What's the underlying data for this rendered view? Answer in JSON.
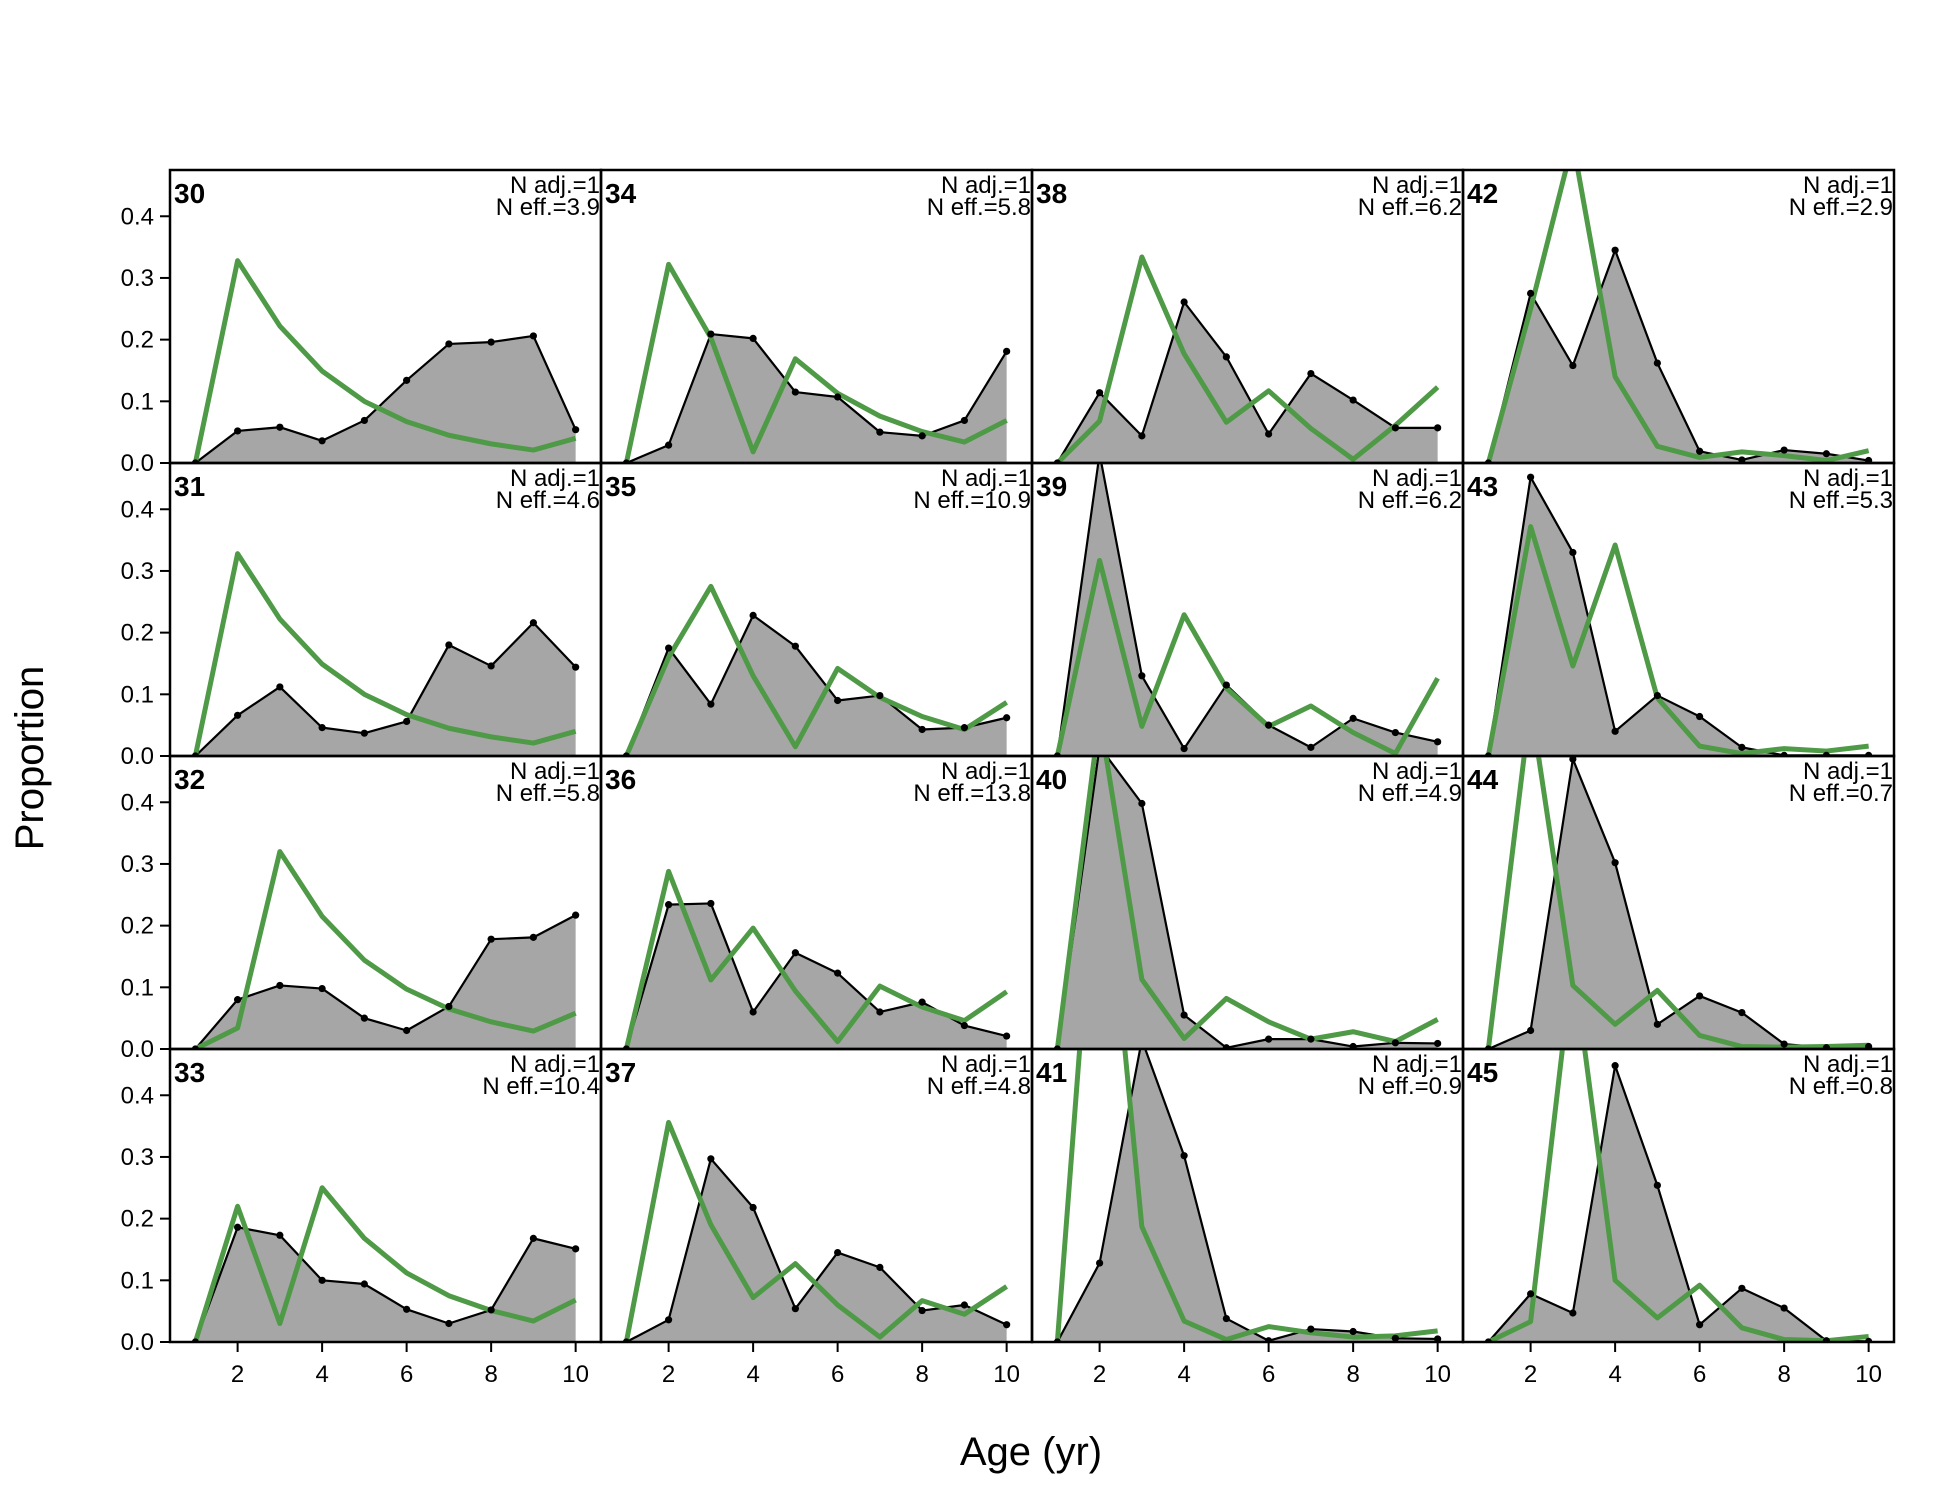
{
  "chart_data": {
    "type": "area",
    "xlabel": "Age (yr)",
    "ylabel": "Proportion",
    "xlim": [
      0.4,
      10.6
    ],
    "ylim": [
      0,
      0.475
    ],
    "x_ticks": [
      2,
      4,
      6,
      8,
      10
    ],
    "y_ticks": [
      "0.0",
      "0.1",
      "0.2",
      "0.3",
      "0.4"
    ],
    "y_tick_values": [
      0,
      0.1,
      0.2,
      0.3,
      0.4
    ],
    "ages": [
      1,
      2,
      3,
      4,
      5,
      6,
      7,
      8,
      9,
      10
    ],
    "colors": {
      "observed_fill": "#a6a6a6",
      "observed_line": "#000000",
      "expected_line": "#4f9a46",
      "zero_line": "#bdbdbd"
    },
    "panels": [
      {
        "label": "30",
        "n_adj": "N adj.=1",
        "n_eff": "N eff.=3.9",
        "observed": [
          0,
          0.052,
          0.058,
          0.036,
          0.069,
          0.134,
          0.193,
          0.196,
          0.206,
          0.054
        ],
        "expected": [
          0,
          0.328,
          0.222,
          0.149,
          0.1,
          0.067,
          0.045,
          0.031,
          0.021,
          0.04
        ]
      },
      {
        "label": "31",
        "n_adj": "N adj.=1",
        "n_eff": "N eff.=4.6",
        "observed": [
          0,
          0.066,
          0.112,
          0.046,
          0.037,
          0.056,
          0.18,
          0.146,
          0.216,
          0.144
        ],
        "expected": [
          0,
          0.328,
          0.222,
          0.149,
          0.1,
          0.067,
          0.045,
          0.031,
          0.021,
          0.04
        ]
      },
      {
        "label": "32",
        "n_adj": "N adj.=1",
        "n_eff": "N eff.=5.8",
        "observed": [
          0,
          0.08,
          0.103,
          0.098,
          0.05,
          0.03,
          0.069,
          0.178,
          0.181,
          0.217
        ],
        "expected": [
          0,
          0.034,
          0.32,
          0.215,
          0.144,
          0.097,
          0.065,
          0.044,
          0.029,
          0.058
        ]
      },
      {
        "label": "33",
        "n_adj": "N adj.=1",
        "n_eff": "N eff.=10.4",
        "observed": [
          0,
          0.186,
          0.173,
          0.1,
          0.094,
          0.053,
          0.03,
          0.052,
          0.168,
          0.151
        ],
        "expected": [
          0,
          0.22,
          0.03,
          0.25,
          0.168,
          0.112,
          0.075,
          0.051,
          0.034,
          0.068
        ]
      },
      {
        "label": "34",
        "n_adj": "N adj.=1",
        "n_eff": "N eff.=5.8",
        "observed": [
          0,
          0.029,
          0.209,
          0.202,
          0.115,
          0.107,
          0.05,
          0.044,
          0.069,
          0.181
        ],
        "expected": [
          0,
          0.322,
          0.203,
          0.018,
          0.169,
          0.113,
          0.076,
          0.051,
          0.034,
          0.069
        ]
      },
      {
        "label": "35",
        "n_adj": "N adj.=1",
        "n_eff": "N eff.=10.9",
        "observed": [
          0,
          0.175,
          0.084,
          0.228,
          0.178,
          0.09,
          0.098,
          0.043,
          0.046,
          0.062
        ],
        "expected": [
          0,
          0.16,
          0.275,
          0.13,
          0.015,
          0.142,
          0.095,
          0.064,
          0.043,
          0.087
        ]
      },
      {
        "label": "36",
        "n_adj": "N adj.=1",
        "n_eff": "N eff.=13.8",
        "observed": [
          0,
          0.234,
          0.236,
          0.06,
          0.156,
          0.123,
          0.06,
          0.076,
          0.038,
          0.021
        ],
        "expected": [
          0,
          0.288,
          0.112,
          0.196,
          0.094,
          0.012,
          0.102,
          0.068,
          0.046,
          0.093
        ]
      },
      {
        "label": "37",
        "n_adj": "N adj.=1",
        "n_eff": "N eff.=4.8",
        "observed": [
          0,
          0.036,
          0.297,
          0.218,
          0.054,
          0.145,
          0.121,
          0.051,
          0.06,
          0.028
        ],
        "expected": [
          0,
          0.356,
          0.19,
          0.072,
          0.127,
          0.06,
          0.008,
          0.067,
          0.045,
          0.09
        ]
      },
      {
        "label": "38",
        "n_adj": "N adj.=1",
        "n_eff": "N eff.=6.2",
        "observed": [
          0,
          0.114,
          0.044,
          0.261,
          0.172,
          0.047,
          0.145,
          0.102,
          0.057,
          0.057
        ],
        "expected": [
          0,
          0.068,
          0.334,
          0.177,
          0.066,
          0.117,
          0.056,
          0.006,
          0.061,
          0.123
        ]
      },
      {
        "label": "39",
        "n_adj": "N adj.=1",
        "n_eff": "N eff.=6.2",
        "observed": [
          0,
          0.49,
          0.13,
          0.012,
          0.115,
          0.05,
          0.014,
          0.061,
          0.038,
          0.023
        ],
        "expected": [
          0,
          0.317,
          0.048,
          0.229,
          0.11,
          0.048,
          0.081,
          0.038,
          0.004,
          0.126
        ]
      },
      {
        "label": "40",
        "n_adj": "N adj.=1",
        "n_eff": "N eff.=4.9",
        "observed": [
          0,
          0.49,
          0.398,
          0.055,
          0.002,
          0.016,
          0.016,
          0.004,
          0.01,
          0.009
        ],
        "expected": [
          0,
          0.54,
          0.113,
          0.017,
          0.082,
          0.044,
          0.016,
          0.028,
          0.012,
          0.048
        ]
      },
      {
        "label": "41",
        "n_adj": "N adj.=1",
        "n_eff": "N eff.=0.9",
        "observed": [
          0,
          0.128,
          0.49,
          0.302,
          0.038,
          0.002,
          0.021,
          0.017,
          0.006,
          0.005
        ],
        "expected": [
          0,
          0.9,
          0.187,
          0.034,
          0.004,
          0.025,
          0.015,
          0.008,
          0.01,
          0.018
        ]
      },
      {
        "label": "42",
        "n_adj": "N adj.=1",
        "n_eff": "N eff.=2.9",
        "observed": [
          0,
          0.275,
          0.158,
          0.345,
          0.162,
          0.019,
          0.005,
          0.021,
          0.015,
          0.004
        ],
        "expected": [
          0,
          0.25,
          0.52,
          0.14,
          0.027,
          0.009,
          0.018,
          0.012,
          0.004,
          0.02
        ]
      },
      {
        "label": "43",
        "n_adj": "N adj.=1",
        "n_eff": "N eff.=5.3",
        "observed": [
          0,
          0.452,
          0.33,
          0.04,
          0.098,
          0.064,
          0.014,
          0.001,
          0.001,
          0.001
        ],
        "expected": [
          0,
          0.372,
          0.146,
          0.342,
          0.094,
          0.016,
          0.004,
          0.012,
          0.008,
          0.016
        ]
      },
      {
        "label": "44",
        "n_adj": "N adj.=1",
        "n_eff": "N eff.=0.7",
        "observed": [
          0,
          0.03,
          0.47,
          0.302,
          0.04,
          0.086,
          0.059,
          0.008,
          0.002,
          0.004
        ],
        "expected": [
          0,
          0.56,
          0.103,
          0.04,
          0.095,
          0.022,
          0.004,
          0.003,
          0.004,
          0.006
        ]
      },
      {
        "label": "45",
        "n_adj": "N adj.=1",
        "n_eff": "N eff.=0.8",
        "observed": [
          0,
          0.078,
          0.047,
          0.448,
          0.254,
          0.028,
          0.087,
          0.055,
          0.002,
          0.001
        ],
        "expected": [
          0,
          0.033,
          0.62,
          0.1,
          0.039,
          0.092,
          0.023,
          0.004,
          0.002,
          0.009
        ]
      }
    ]
  }
}
